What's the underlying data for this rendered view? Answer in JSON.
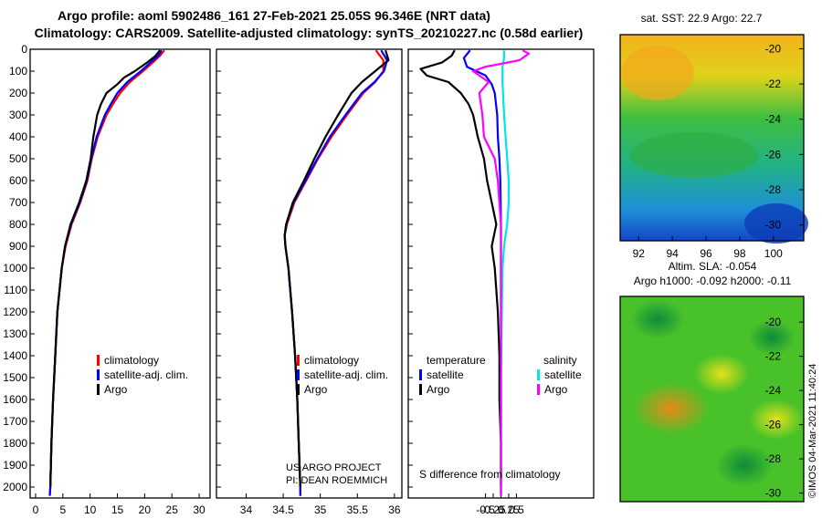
{
  "title": {
    "line1": "Argo profile: aoml 5902486_161 27-Feb-2021 25.05S 96.346E (NRT data)",
    "line2": "Climatology: CARS2009. Satellite-adjusted climatology: synTS_20210227.nc (0.58d earlier)"
  },
  "colors": {
    "climatology": "#ff0000",
    "satellite": "#0000ff",
    "argo": "#000000",
    "satellite_salinity": "#00e5e5",
    "argo_salinity": "#ff00ff"
  },
  "depth_axis": {
    "ticks": [
      0,
      100,
      200,
      300,
      400,
      500,
      600,
      700,
      800,
      900,
      1000,
      1100,
      1200,
      1300,
      1400,
      1500,
      1600,
      1700,
      1800,
      1900,
      2000
    ],
    "range": [
      0,
      2050
    ]
  },
  "chart_data": [
    {
      "type": "line",
      "panel": "temperature",
      "xlim": [
        -1,
        32
      ],
      "x_ticks": [
        0,
        5,
        10,
        15,
        20,
        25,
        30
      ],
      "legend": [
        "climatology",
        "satellite-adj. clim.",
        "Argo"
      ],
      "series": [
        {
          "name": "climatology",
          "depth": [
            5,
            30,
            60,
            100,
            150,
            200,
            250,
            300,
            400,
            500,
            600,
            700,
            800,
            900,
            1000,
            1200,
            1400,
            1600,
            1800,
            2000,
            2040
          ],
          "values": [
            23.6,
            22.8,
            21.5,
            19.7,
            17.3,
            15.5,
            14.2,
            13.0,
            11.4,
            10.3,
            9.5,
            8.2,
            6.6,
            5.5,
            4.8,
            4.0,
            3.6,
            3.2,
            2.9,
            2.7,
            2.6
          ]
        },
        {
          "name": "satellite-adj. clim.",
          "depth": [
            5,
            30,
            60,
            100,
            150,
            200,
            250,
            300,
            400,
            500,
            600,
            700,
            800,
            900,
            1000,
            1200,
            1400,
            1600,
            1800,
            2000,
            2040
          ],
          "values": [
            23.1,
            22.5,
            21.1,
            19.3,
            16.8,
            15.0,
            13.8,
            12.7,
            11.2,
            10.2,
            9.4,
            8.1,
            6.5,
            5.4,
            4.8,
            4.0,
            3.6,
            3.2,
            2.9,
            2.7,
            2.6
          ]
        },
        {
          "name": "Argo",
          "depth": [
            5,
            30,
            60,
            100,
            130,
            160,
            200,
            250,
            300,
            400,
            500,
            600,
            700,
            800,
            900,
            1000,
            1200,
            1400,
            1600,
            1800,
            2000
          ],
          "values": [
            22.8,
            22.0,
            20.5,
            18.2,
            16.2,
            15.0,
            13.0,
            12.0,
            11.3,
            10.6,
            10.1,
            9.3,
            8.0,
            6.4,
            5.4,
            4.8,
            4.0,
            3.6,
            3.2,
            2.9,
            2.7
          ]
        }
      ]
    },
    {
      "type": "line",
      "panel": "salinity",
      "xlim": [
        33.6,
        36.1
      ],
      "x_ticks": [
        34,
        34.5,
        35,
        35.5,
        36
      ],
      "legend": [
        "climatology",
        "satellite-adj. clim.",
        "Argo"
      ],
      "series": [
        {
          "name": "climatology",
          "depth": [
            5,
            50,
            100,
            150,
            200,
            300,
            400,
            500,
            600,
            700,
            800,
            850,
            900,
            1000,
            1200,
            1400,
            1600,
            1800,
            2000,
            2040
          ],
          "values": [
            35.75,
            35.85,
            35.85,
            35.74,
            35.58,
            35.36,
            35.15,
            34.97,
            34.81,
            34.65,
            34.55,
            34.52,
            34.53,
            34.57,
            34.62,
            34.66,
            34.69,
            34.71,
            34.73,
            34.73
          ]
        },
        {
          "name": "satellite-adj. clim.",
          "depth": [
            5,
            50,
            100,
            150,
            200,
            300,
            400,
            500,
            600,
            700,
            800,
            850,
            900,
            1000,
            1200,
            1400,
            1600,
            1800,
            2000,
            2040
          ],
          "values": [
            35.82,
            35.9,
            35.86,
            35.73,
            35.56,
            35.34,
            35.13,
            34.96,
            34.8,
            34.64,
            34.54,
            34.52,
            34.53,
            34.57,
            34.62,
            34.66,
            34.69,
            34.71,
            34.73,
            34.73
          ]
        },
        {
          "name": "Argo",
          "depth": [
            5,
            50,
            100,
            150,
            200,
            300,
            400,
            500,
            600,
            700,
            800,
            850,
            900,
            1000,
            1200,
            1400,
            1600,
            1800,
            2000
          ],
          "values": [
            35.88,
            35.92,
            35.74,
            35.56,
            35.42,
            35.24,
            35.07,
            34.92,
            34.78,
            34.63,
            34.54,
            34.52,
            34.53,
            34.57,
            34.62,
            34.66,
            34.69,
            34.71,
            34.73
          ]
        }
      ],
      "annotation": [
        "US ARGO PROJECT",
        "PI: DEAN ROEMMICH"
      ]
    },
    {
      "type": "line",
      "panel": "difference",
      "xlim": [
        -3,
        3
      ],
      "x_ticks": [
        -0.5,
        -0.25,
        0,
        0.25,
        0.5
      ],
      "xlabel": "S difference from climatology",
      "legend_left_title": "temperature",
      "legend_right_title": "salinity",
      "legend_left": [
        "satellite",
        "Argo"
      ],
      "legend_right": [
        "satellite",
        "Argo"
      ],
      "series": [
        {
          "name": "temperature satellite",
          "depth": [
            5,
            40,
            80,
            120,
            160,
            200,
            300,
            400,
            500,
            600,
            800,
            1000,
            1500,
            2040
          ],
          "values": [
            -1.0,
            -1.2,
            -1.1,
            -0.5,
            -0.3,
            -0.2,
            -0.12,
            -0.1,
            -0.05,
            -0.02,
            0,
            0,
            0,
            0
          ]
        },
        {
          "name": "temperature Argo",
          "depth": [
            5,
            30,
            60,
            90,
            120,
            150,
            200,
            250,
            300,
            400,
            500,
            600,
            700,
            800,
            900,
            1000,
            1200,
            1400,
            1500,
            1600,
            1800,
            2000
          ],
          "values": [
            -1.5,
            -1.6,
            -1.9,
            -2.6,
            -2.4,
            -1.7,
            -1.3,
            -1.05,
            -0.9,
            -0.75,
            -0.55,
            -0.45,
            -0.3,
            -0.15,
            -0.3,
            -0.2,
            -0.1,
            -0.05,
            -0.05,
            -0.05,
            0,
            0
          ]
        },
        {
          "name": "salinity satellite",
          "depth": [
            5,
            40,
            80,
            150,
            300,
            500,
            600,
            700,
            800,
            900,
            1000,
            1500,
            2040
          ],
          "values": [
            0.1,
            0.1,
            0.05,
            0.05,
            0.1,
            0.2,
            0.25,
            0.25,
            0.2,
            0.1,
            0.05,
            0,
            0
          ]
        },
        {
          "name": "salinity Argo",
          "depth": [
            5,
            20,
            50,
            80,
            100,
            150,
            200,
            300,
            400,
            500,
            600,
            700,
            800,
            1000,
            1500,
            2040
          ],
          "values": [
            0.7,
            0.9,
            0.6,
            -0.5,
            -0.9,
            -0.4,
            -0.7,
            -0.6,
            -0.55,
            -0.2,
            -0.1,
            -0.05,
            0,
            0,
            0,
            0
          ]
        }
      ]
    }
  ],
  "map_sst": {
    "label": "sat. SST: 22.9 Argo: 22.7",
    "y_ticks": [
      -20,
      -22,
      -24,
      -26,
      -28,
      -30
    ],
    "x_ticks": [
      92,
      94,
      96,
      98,
      100
    ]
  },
  "map_sla": {
    "label1": "Altim. SLA: -0.054",
    "label2": "Argo h1000: -0.092 h2000: -0.11",
    "y_ticks": [
      -20,
      -22,
      -24,
      -26,
      -28,
      -30
    ]
  },
  "credit": "©IMOS 04-Mar-2021 11:40:24"
}
